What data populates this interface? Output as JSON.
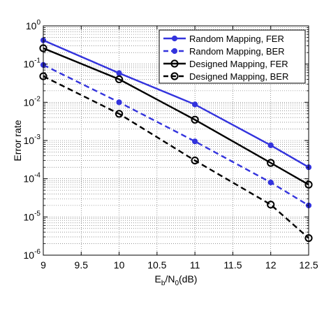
{
  "chart_data": {
    "type": "line",
    "xlabel": {
      "main": "E",
      "sub1": "b",
      "mid": "/N",
      "sub2": "0",
      "tail": "(dB)"
    },
    "ylabel": "Error rate",
    "xlim": [
      9,
      12.5
    ],
    "ylim": [
      1e-06,
      1
    ],
    "yscale": "log",
    "grid": true,
    "legend_position": "top-right",
    "x": [
      9,
      10,
      11,
      12,
      12.5
    ],
    "xticks": [
      "9",
      "9.5",
      "10",
      "10.5",
      "11",
      "11.5",
      "12",
      "12.5"
    ],
    "yticks": [
      {
        "base": "10",
        "exp": "0"
      },
      {
        "base": "10",
        "exp": "-1"
      },
      {
        "base": "10",
        "exp": "-2"
      },
      {
        "base": "10",
        "exp": "-3"
      },
      {
        "base": "10",
        "exp": "-4"
      },
      {
        "base": "10",
        "exp": "-5"
      },
      {
        "base": "10",
        "exp": "-6"
      }
    ],
    "series": [
      {
        "name": "Random Mapping, FER",
        "color": "#3333dd",
        "dash": "solid",
        "marker": "dot",
        "values": [
          0.42,
          0.058,
          0.0088,
          0.00075,
          0.0002
        ]
      },
      {
        "name": "Random Mapping, BER",
        "color": "#3333dd",
        "dash": "dashed",
        "marker": "dot",
        "values": [
          0.095,
          0.01,
          0.00095,
          8e-05,
          2e-05
        ]
      },
      {
        "name": "Designed Mapping, FER",
        "color": "#000000",
        "dash": "solid",
        "marker": "circle",
        "values": [
          0.26,
          0.04,
          0.0035,
          0.00026,
          7e-05
        ]
      },
      {
        "name": "Designed Mapping, BER",
        "color": "#000000",
        "dash": "dashed",
        "marker": "circle",
        "values": [
          0.048,
          0.005,
          0.0003,
          2.1e-05,
          2.8e-06
        ]
      }
    ]
  }
}
